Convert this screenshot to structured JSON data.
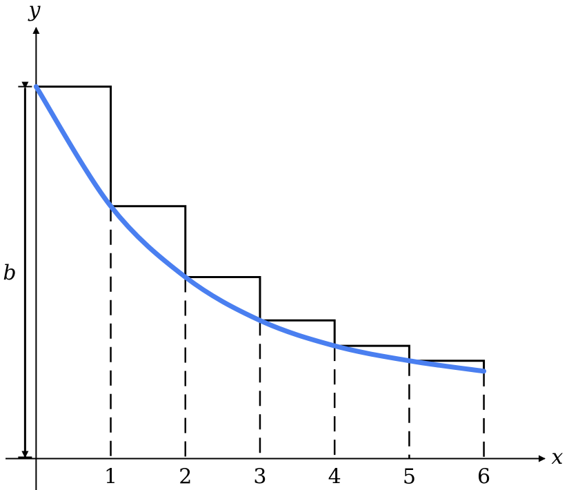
{
  "chart_data": {
    "type": "line",
    "x_label": "x",
    "y_label": "y",
    "annotation": "b",
    "x": [
      0,
      1,
      2,
      3,
      4,
      5,
      6
    ],
    "series": [
      {
        "color": "#4a7ff0",
        "values": [
          4.98,
          3.38,
          2.43,
          1.85,
          1.51,
          1.31,
          1.17
        ]
      }
    ],
    "steps": true,
    "xlim": [
      -0.41,
      6.54
    ],
    "ylim": [
      -0.42,
      5.77
    ],
    "xticks": [
      1,
      2,
      3,
      4,
      5,
      6
    ]
  }
}
